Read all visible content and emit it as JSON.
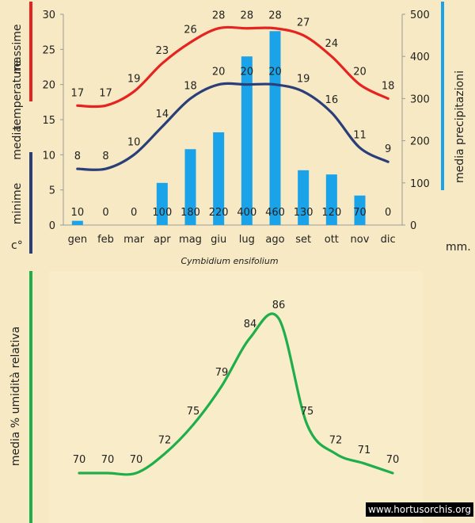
{
  "chart_data": [
    {
      "type": "bar+line",
      "caption": "Cymbidium ensifolium",
      "categories": [
        "gen",
        "feb",
        "mar",
        "apr",
        "mag",
        "giu",
        "lug",
        "ago",
        "set",
        "ott",
        "nov",
        "dic"
      ],
      "left_axis": {
        "ylim": [
          0,
          30
        ],
        "ticks": [
          "0",
          "5",
          "10",
          "15",
          "20",
          "25",
          "30"
        ],
        "unit": "c°",
        "title_parts": [
          "media",
          "temperature"
        ],
        "title_max": "massime",
        "title_min": "minime"
      },
      "right_axis": {
        "ylim": [
          0,
          500
        ],
        "ticks": [
          "0",
          "100",
          "200",
          "300",
          "400",
          "500"
        ],
        "unit": "mm.",
        "title": "media  precipitazioni"
      },
      "series": [
        {
          "name": "massime",
          "kind": "line",
          "axis": "left",
          "color": "#e52421",
          "values": [
            17,
            17,
            19,
            23,
            26,
            28,
            28,
            28,
            27,
            24,
            20,
            18
          ]
        },
        {
          "name": "minime",
          "kind": "line",
          "axis": "left",
          "color": "#2a3f7a",
          "values": [
            8,
            8,
            10,
            14,
            18,
            20,
            20,
            20,
            19,
            16,
            11,
            9
          ]
        },
        {
          "name": "precipitazioni",
          "kind": "bar",
          "axis": "right",
          "color": "#1aa3e8",
          "values": [
            10,
            0,
            0,
            100,
            180,
            220,
            400,
            460,
            130,
            120,
            70,
            0
          ]
        }
      ],
      "colors": {
        "max": "#e52421",
        "min": "#2a3f7a",
        "rain": "#1aa3e8"
      }
    },
    {
      "type": "line",
      "ylabel": "media  %  umidità relativa",
      "categories": [
        "gen",
        "feb",
        "mar",
        "apr",
        "mag",
        "giu",
        "lug",
        "ago",
        "set",
        "ott",
        "nov",
        "dic"
      ],
      "series": [
        {
          "name": "umidità relativa",
          "color": "#1fae4b",
          "values": [
            70,
            70,
            70,
            72,
            75,
            79,
            84,
            86,
            75,
            72,
            71,
            70
          ]
        }
      ]
    }
  ],
  "watermark": "www.hortusorchis.org"
}
